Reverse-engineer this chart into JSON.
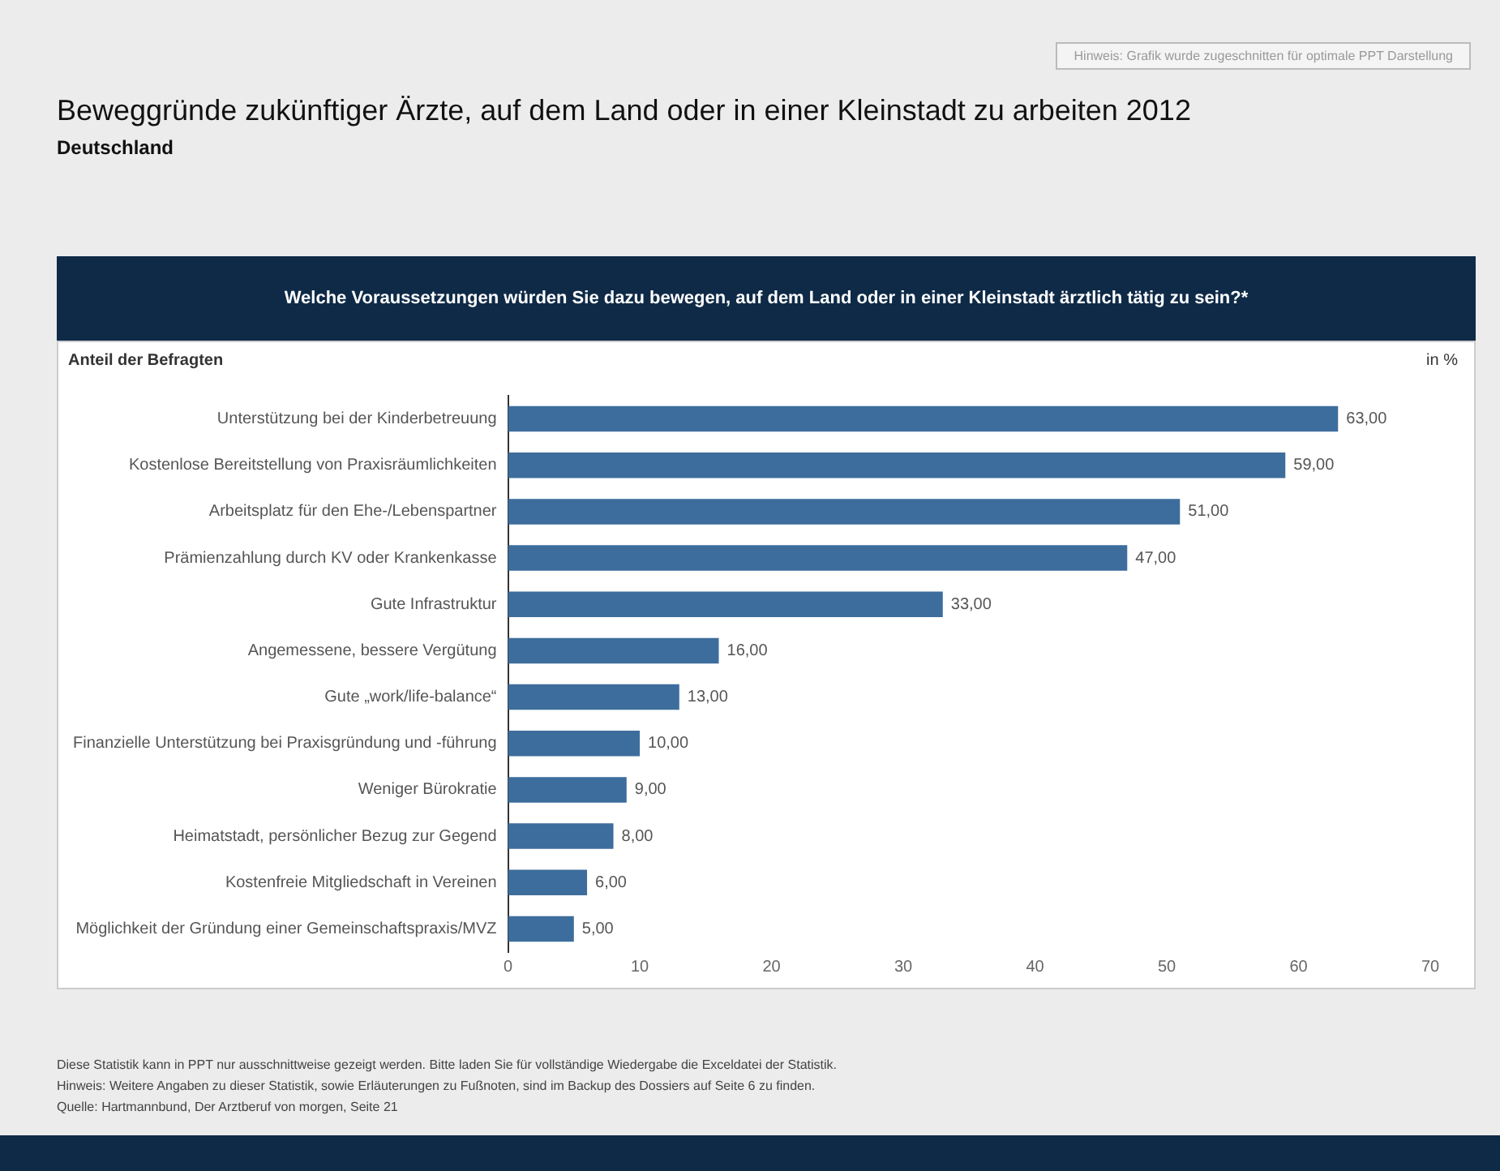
{
  "chart_data": {
    "type": "bar",
    "orientation": "horizontal",
    "title": "Beweggründe zukünftiger Ärzte, auf dem Land oder in einer Kleinstadt zu arbeiten 2012",
    "subtitle": "Deutschland",
    "ylabel": "Anteil der Befragten",
    "xlabel": "in %",
    "annotations": [
      "Welche Voraussetzungen würden Sie dazu bewegen, auf dem Land oder in einer Kleinstadt ärztlich tätig zu sein?*",
      "Hinweis: Grafik wurde zugeschnitten für optimale PPT Darstellung",
      "Diese Statistik kann in PPT nur ausschnittweise gezeigt werden. Bitte laden Sie für vollständige Wiedergabe die Exceldatei der Statistik.",
      "Hinweis: Weitere Angaben zu dieser Statistik, sowie Erläuterungen zu Fußnoten, sind im Backup des Dossiers auf Seite 6 zu finden.",
      "Quelle: Hartmannbund, Der Arztberuf von morgen, Seite 21"
    ],
    "categories": [
      "Unterstützung bei der Kinderbetreuung",
      "Kostenlose Bereitstellung von Praxisräumlichkeiten",
      "Arbeitsplatz für den Ehe-/Lebenspartner",
      "Prämienzahlung durch KV oder Krankenkasse",
      "Gute Infrastruktur",
      "Angemessene, bessere Vergütung",
      "Gute „work/life-balance“",
      "Finanzielle Unterstützung bei Praxisgründung und -führung",
      "Weniger Bürokratie",
      "Heimatstadt, persönlicher Bezug zur Gegend",
      "Kostenfreie Mitgliedschaft in Vereinen",
      "Möglichkeit der Gründung einer Gemeinschaftspraxis/MVZ"
    ],
    "values": [
      63,
      59,
      51,
      47,
      33,
      16,
      13,
      10,
      9,
      8,
      6,
      5
    ],
    "value_labels": [
      "63,00",
      "59,00",
      "51,00",
      "47,00",
      "33,00",
      "16,00",
      "13,00",
      "10,00",
      "9,00",
      "8,00",
      "6,00",
      "5,00"
    ],
    "color": "#3d6d9c",
    "xlim": [
      0,
      70
    ],
    "xticks": [
      0,
      10,
      20,
      30,
      40,
      50,
      60,
      70
    ],
    "grid": false,
    "legend": false
  }
}
